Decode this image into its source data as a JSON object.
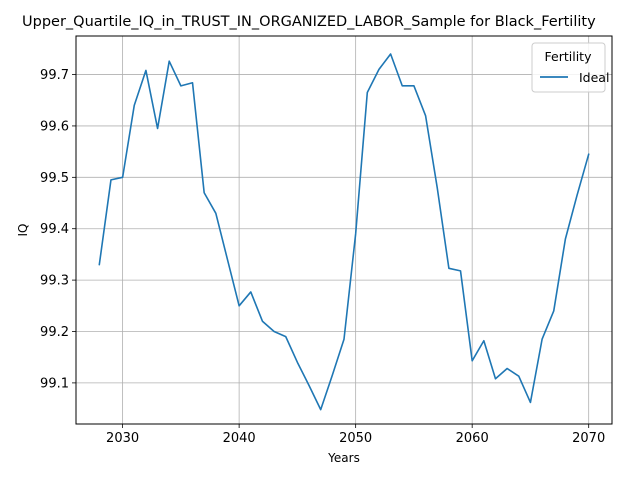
{
  "chart_data": {
    "type": "line",
    "title": "Upper_Quartile_IQ_in_TRUST_IN_ORGANIZED_LABOR_Sample for Black_Fertility",
    "xlabel": "Years",
    "ylabel": "IQ",
    "xlim": [
      2026,
      2072
    ],
    "ylim": [
      99.02,
      99.775
    ],
    "xticks": [
      2030,
      2040,
      2050,
      2060,
      2070
    ],
    "yticks": [
      99.1,
      99.2,
      99.3,
      99.4,
      99.5,
      99.6,
      99.7
    ],
    "grid": true,
    "legend": {
      "title": "Fertility",
      "placement": "upper-right"
    },
    "series": [
      {
        "name": "Ideal",
        "color": "#1f77b4",
        "x": [
          2028,
          2029,
          2030,
          2031,
          2032,
          2033,
          2034,
          2035,
          2036,
          2037,
          2038,
          2039,
          2040,
          2041,
          2042,
          2043,
          2044,
          2045,
          2046,
          2047,
          2048,
          2049,
          2050,
          2051,
          2052,
          2053,
          2054,
          2055,
          2056,
          2057,
          2058,
          2059,
          2060,
          2061,
          2062,
          2063,
          2064,
          2065,
          2066,
          2067,
          2068,
          2069,
          2070
        ],
        "y": [
          99.33,
          99.495,
          99.5,
          99.64,
          99.708,
          99.595,
          99.726,
          99.678,
          99.684,
          99.47,
          99.43,
          99.34,
          99.25,
          99.277,
          99.22,
          99.2,
          99.19,
          99.14,
          99.095,
          99.048,
          99.115,
          99.185,
          99.39,
          99.665,
          99.71,
          99.74,
          99.678,
          99.678,
          99.62,
          99.48,
          99.323,
          99.318,
          99.143,
          99.182,
          99.108,
          99.128,
          99.113,
          99.062,
          99.185,
          99.24,
          99.38,
          99.465,
          99.545
        ]
      }
    ]
  }
}
